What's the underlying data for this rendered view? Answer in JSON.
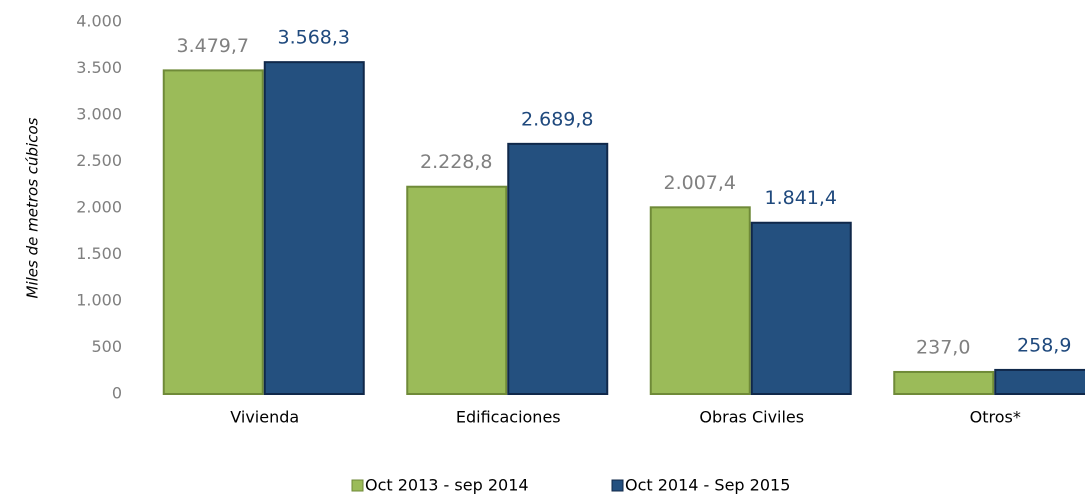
{
  "chart_data": {
    "type": "bar",
    "y_axis_label": "Miles de metros cúbicos",
    "categories": [
      "Vivienda",
      "Edificaciones",
      "Obras Civiles",
      "Otros*"
    ],
    "series": [
      {
        "name": "Oct 2013 - sep 2014",
        "color": "#9bbb59",
        "label_color": "#808080",
        "values": [
          3479.7,
          2228.8,
          2007.4,
          237.0
        ],
        "value_labels": [
          "3.479,7",
          "2.228,8",
          "2.007,4",
          "237,0"
        ]
      },
      {
        "name": "Oct 2014 - Sep 2015",
        "color": "#24507f",
        "label_color": "#1f497d",
        "values": [
          3568.3,
          2689.8,
          1841.4,
          258.9
        ],
        "value_labels": [
          "3.568,3",
          "2.689,8",
          "1.841,4",
          "258,9"
        ]
      }
    ],
    "ylim": [
      0,
      4000
    ],
    "yticks": [
      0,
      500,
      {
        "value": 1000,
        "label": "1.000"
      },
      {
        "value": 1500,
        "label": "1.500"
      },
      {
        "value": 2000,
        "label": "2.000"
      },
      {
        "value": 2500,
        "label": "2.500"
      },
      {
        "value": 3000,
        "label": "3.000"
      },
      {
        "value": 3500,
        "label": "3.500"
      },
      {
        "value": 4000,
        "label": "4.000"
      }
    ],
    "grid": false,
    "legend": "bottom"
  }
}
